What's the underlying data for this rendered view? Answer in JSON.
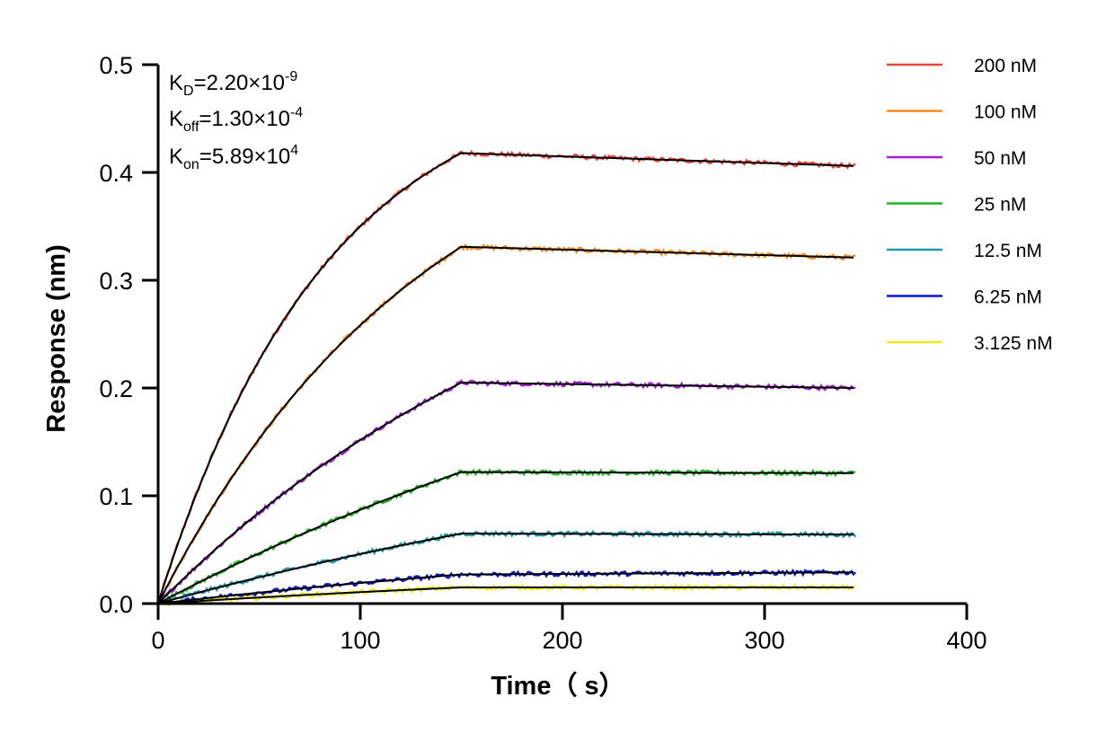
{
  "chart_data": {
    "type": "line",
    "title": "",
    "xlabel": "Time（ s）",
    "ylabel": "Response (nm)",
    "xlim": [
      0,
      400
    ],
    "ylim": [
      0,
      0.5
    ],
    "x_ticks": [
      "0",
      "100",
      "200",
      "300",
      "400"
    ],
    "y_ticks": [
      "0.0",
      "0.1",
      "0.2",
      "0.3",
      "0.4",
      "0.5"
    ],
    "grid": false,
    "legend_position": "top-right",
    "annotations": {
      "kd": {
        "label": "K",
        "sub": "D",
        "value": "=2.20×10",
        "exp": "-9"
      },
      "koff": {
        "label": "K",
        "sub": "off",
        "value": "=1.30×10",
        "exp": "-4"
      },
      "kon": {
        "label": "K",
        "sub": "on",
        "value": "=5.89×10",
        "exp": "4"
      }
    },
    "association_end": 150,
    "dissociation_end": 345,
    "fit_color": "#000000",
    "series": [
      {
        "name": "200 nM",
        "color": "#e8473e",
        "plateau": 0.418,
        "final": 0.406
      },
      {
        "name": "100 nM",
        "color": "#f58a1f",
        "plateau": 0.331,
        "final": 0.321
      },
      {
        "name": "50 nM",
        "color": "#a020d0",
        "plateau": 0.205,
        "final": 0.2
      },
      {
        "name": "25 nM",
        "color": "#22b422",
        "plateau": 0.122,
        "final": 0.121
      },
      {
        "name": "12.5 nM",
        "color": "#1e9aaa",
        "plateau": 0.065,
        "final": 0.064
      },
      {
        "name": "6.25 nM",
        "color": "#0a14d4",
        "plateau": 0.027,
        "final": 0.029
      },
      {
        "name": "3.125 nM",
        "color": "#f2ec1a",
        "plateau": 0.015,
        "final": 0.015
      }
    ]
  }
}
